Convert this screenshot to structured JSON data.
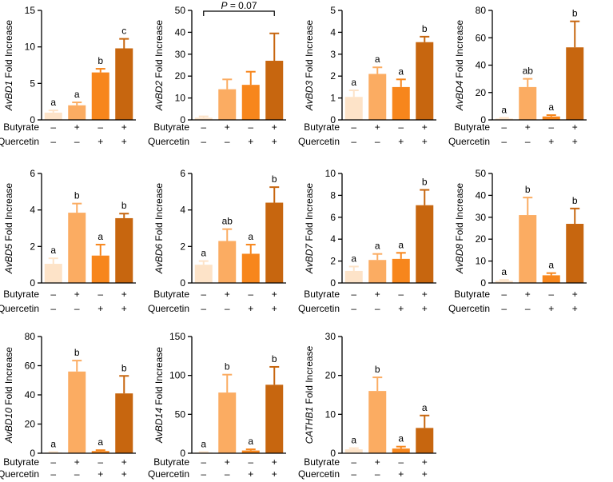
{
  "figure": {
    "factors": {
      "butyrate": "Butyrate",
      "quercetin": "Quercetin"
    },
    "level_symbols": {
      "minus": "–",
      "plus": "+"
    },
    "ylabel_suffix": " Fold Increase",
    "bar_colors": [
      "#fde3c8",
      "#fbac62",
      "#f7861c",
      "#c7660f"
    ],
    "conditions": [
      {
        "butyrate": "minus",
        "quercetin": "minus"
      },
      {
        "butyrate": "plus",
        "quercetin": "minus"
      },
      {
        "butyrate": "minus",
        "quercetin": "plus"
      },
      {
        "butyrate": "plus",
        "quercetin": "plus"
      }
    ]
  },
  "chart_data": [
    {
      "type": "bar",
      "gene": "AvBD1",
      "ylim": [
        0,
        15
      ],
      "yticks": [
        0,
        5,
        10,
        15
      ],
      "values": [
        1.0,
        2.0,
        6.5,
        9.8
      ],
      "errors": [
        0.3,
        0.4,
        0.5,
        1.3
      ],
      "letters": [
        "a",
        "a",
        "b",
        "c"
      ]
    },
    {
      "type": "bar",
      "gene": "AvBD2",
      "ylim": [
        0,
        50
      ],
      "yticks": [
        0,
        10,
        20,
        30,
        40,
        50
      ],
      "values": [
        1.0,
        14.0,
        16.0,
        27.0
      ],
      "errors": [
        0.6,
        4.5,
        6.0,
        12.5
      ],
      "letters": [
        "",
        "",
        "",
        ""
      ],
      "bracket": {
        "label": "P = 0.07",
        "from": 0,
        "to": 3
      }
    },
    {
      "type": "bar",
      "gene": "AvBD3",
      "ylim": [
        0,
        5
      ],
      "yticks": [
        0,
        1,
        2,
        3,
        4,
        5
      ],
      "values": [
        1.05,
        2.1,
        1.5,
        3.55
      ],
      "errors": [
        0.3,
        0.3,
        0.35,
        0.25
      ],
      "letters": [
        "a",
        "a",
        "a",
        "b"
      ]
    },
    {
      "type": "bar",
      "gene": "AvBD4",
      "ylim": [
        0,
        80
      ],
      "yticks": [
        0,
        20,
        40,
        60,
        80
      ],
      "values": [
        1.0,
        24.0,
        2.5,
        53.0
      ],
      "errors": [
        0.5,
        6.0,
        1.0,
        19.0
      ],
      "letters": [
        "a",
        "ab",
        "a",
        "b"
      ]
    },
    {
      "type": "bar",
      "gene": "AvBD5",
      "ylim": [
        0,
        6
      ],
      "yticks": [
        0,
        2,
        4,
        6
      ],
      "values": [
        1.05,
        3.85,
        1.5,
        3.55
      ],
      "errors": [
        0.3,
        0.5,
        0.6,
        0.25
      ],
      "letters": [
        "a",
        "b",
        "a",
        "b"
      ]
    },
    {
      "type": "bar",
      "gene": "AvBD6",
      "ylim": [
        0,
        6
      ],
      "yticks": [
        0,
        2,
        4,
        6
      ],
      "values": [
        1.0,
        2.3,
        1.6,
        4.4
      ],
      "errors": [
        0.2,
        0.65,
        0.5,
        0.85
      ],
      "letters": [
        "a",
        "ab",
        "a",
        "b"
      ]
    },
    {
      "type": "bar",
      "gene": "AvBD7",
      "ylim": [
        0,
        10
      ],
      "yticks": [
        0,
        2,
        4,
        6,
        8,
        10
      ],
      "values": [
        1.1,
        2.1,
        2.2,
        7.1
      ],
      "errors": [
        0.4,
        0.55,
        0.55,
        1.4
      ],
      "letters": [
        "a",
        "a",
        "a",
        "b"
      ]
    },
    {
      "type": "bar",
      "gene": "AvBD8",
      "ylim": [
        0,
        50
      ],
      "yticks": [
        0,
        10,
        20,
        30,
        40,
        50
      ],
      "values": [
        1.0,
        31.0,
        3.5,
        27.0
      ],
      "errors": [
        0.4,
        8.0,
        1.0,
        7.0
      ],
      "letters": [
        "a",
        "b",
        "a",
        "b"
      ]
    },
    {
      "type": "bar",
      "gene": "AvBD10",
      "ylim": [
        0,
        80
      ],
      "yticks": [
        0,
        20,
        40,
        60,
        80
      ],
      "values": [
        0.5,
        56.0,
        1.5,
        41.0
      ],
      "errors": [
        0.3,
        7.5,
        0.6,
        12.0
      ],
      "letters": [
        "a",
        "b",
        "a",
        "b"
      ]
    },
    {
      "type": "bar",
      "gene": "AvBD14",
      "ylim": [
        0,
        150
      ],
      "yticks": [
        0,
        50,
        100,
        150
      ],
      "values": [
        1.0,
        78.0,
        3.5,
        88.0
      ],
      "errors": [
        0.5,
        23.0,
        1.5,
        23.0
      ],
      "letters": [
        "a",
        "b",
        "a",
        "b"
      ]
    },
    {
      "type": "bar",
      "gene": "CATHB1",
      "ylim": [
        0,
        30
      ],
      "yticks": [
        0,
        10,
        20,
        30
      ],
      "values": [
        1.0,
        16.0,
        1.2,
        6.5
      ],
      "errors": [
        0.3,
        3.5,
        0.5,
        3.2
      ],
      "letters": [
        "a",
        "b",
        "a",
        "a"
      ]
    }
  ]
}
